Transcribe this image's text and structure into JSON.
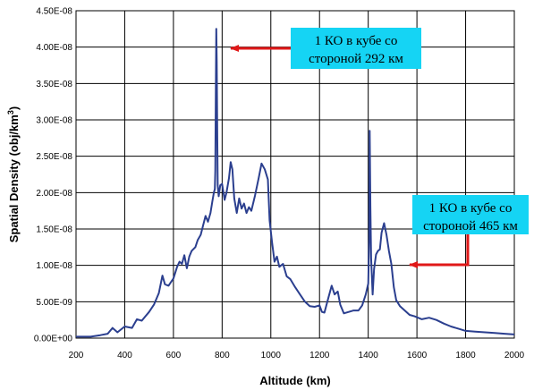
{
  "chart_data": {
    "type": "line",
    "xlabel": "Altitude (km)",
    "ylabel": "Spatial Density (obj/km",
    "ylabel_sup": "3",
    "ylabel_close": ")",
    "xlim": [
      200,
      2000
    ],
    "ylim": [
      0,
      4.5e-08
    ],
    "x_ticks": [
      200,
      400,
      600,
      800,
      1000,
      1200,
      1400,
      1600,
      1800,
      2000
    ],
    "x_tick_labels": [
      "200",
      "400",
      "600",
      "800",
      "1000",
      "1200",
      "1400",
      "1600",
      "1800",
      "2000"
    ],
    "y_ticks": [
      0,
      5e-09,
      1e-08,
      1.5e-08,
      2e-08,
      2.5e-08,
      3e-08,
      3.5e-08,
      4e-08,
      4.5e-08
    ],
    "y_tick_labels": [
      "0.00E+00",
      "5.00E-09",
      "1.00E-08",
      "1.50E-08",
      "2.00E-08",
      "2.50E-08",
      "3.00E-08",
      "3.50E-08",
      "4.00E-08",
      "4.50E-08"
    ],
    "grid": true,
    "line_color": "#2b3f8f",
    "series": [
      {
        "values": [
          [
            200,
            2e-10
          ],
          [
            260,
            2e-10
          ],
          [
            300,
            4e-10
          ],
          [
            330,
            6e-10
          ],
          [
            350,
            1.4e-09
          ],
          [
            370,
            8e-10
          ],
          [
            400,
            1.6e-09
          ],
          [
            430,
            1.4e-09
          ],
          [
            450,
            2.6e-09
          ],
          [
            470,
            2.4e-09
          ],
          [
            500,
            3.6e-09
          ],
          [
            520,
            4.6e-09
          ],
          [
            540,
            6.2e-09
          ],
          [
            555,
            8.6e-09
          ],
          [
            565,
            7.4e-09
          ],
          [
            580,
            7.2e-09
          ],
          [
            600,
            8.2e-09
          ],
          [
            615,
            9.8e-09
          ],
          [
            625,
            1.05e-08
          ],
          [
            635,
            1.02e-08
          ],
          [
            645,
            1.14e-08
          ],
          [
            655,
            9.6e-09
          ],
          [
            665,
            1.12e-08
          ],
          [
            675,
            1.2e-08
          ],
          [
            690,
            1.25e-08
          ],
          [
            700,
            1.35e-08
          ],
          [
            712,
            1.42e-08
          ],
          [
            722,
            1.55e-08
          ],
          [
            732,
            1.68e-08
          ],
          [
            742,
            1.6e-08
          ],
          [
            752,
            1.72e-08
          ],
          [
            760,
            1.88e-08
          ],
          [
            766,
            2e-08
          ],
          [
            770,
            2.05e-08
          ],
          [
            772,
            2.3e-08
          ],
          [
            774,
            3.4e-08
          ],
          [
            776,
            4.25e-08
          ],
          [
            778,
            3.8e-08
          ],
          [
            780,
            2.8e-08
          ],
          [
            782,
            2.1e-08
          ],
          [
            786,
            1.95e-08
          ],
          [
            792,
            2.1e-08
          ],
          [
            800,
            2.12e-08
          ],
          [
            810,
            1.9e-08
          ],
          [
            818,
            2e-08
          ],
          [
            828,
            2.2e-08
          ],
          [
            835,
            2.42e-08
          ],
          [
            842,
            2.32e-08
          ],
          [
            850,
            1.92e-08
          ],
          [
            860,
            1.72e-08
          ],
          [
            870,
            1.92e-08
          ],
          [
            880,
            1.78e-08
          ],
          [
            890,
            1.85e-08
          ],
          [
            900,
            1.72e-08
          ],
          [
            910,
            1.8e-08
          ],
          [
            920,
            1.75e-08
          ],
          [
            935,
            1.96e-08
          ],
          [
            950,
            2.2e-08
          ],
          [
            962,
            2.4e-08
          ],
          [
            975,
            2.32e-08
          ],
          [
            988,
            2.18e-08
          ],
          [
            995,
            1.62e-08
          ],
          [
            1005,
            1.32e-08
          ],
          [
            1015,
            1.05e-08
          ],
          [
            1025,
            1.12e-08
          ],
          [
            1035,
            9.8e-09
          ],
          [
            1050,
            1.02e-08
          ],
          [
            1065,
            8.5e-09
          ],
          [
            1080,
            8.1e-09
          ],
          [
            1100,
            7e-09
          ],
          [
            1120,
            6e-09
          ],
          [
            1140,
            5e-09
          ],
          [
            1160,
            4.4e-09
          ],
          [
            1180,
            4.3e-09
          ],
          [
            1200,
            4.5e-09
          ],
          [
            1210,
            3.6e-09
          ],
          [
            1220,
            3.5e-09
          ],
          [
            1235,
            5.4e-09
          ],
          [
            1250,
            7.2e-09
          ],
          [
            1262,
            6e-09
          ],
          [
            1275,
            6.4e-09
          ],
          [
            1285,
            4.6e-09
          ],
          [
            1300,
            3.4e-09
          ],
          [
            1320,
            3.6e-09
          ],
          [
            1340,
            3.8e-09
          ],
          [
            1360,
            3.8e-09
          ],
          [
            1375,
            4.5e-09
          ],
          [
            1390,
            6e-09
          ],
          [
            1400,
            7.5e-09
          ],
          [
            1404,
            1.4e-08
          ],
          [
            1406,
            2.85e-08
          ],
          [
            1409,
            1.8e-08
          ],
          [
            1412,
            1.1e-08
          ],
          [
            1418,
            6e-09
          ],
          [
            1424,
            9.5e-09
          ],
          [
            1432,
            1.15e-08
          ],
          [
            1440,
            1.2e-08
          ],
          [
            1448,
            1.22e-08
          ],
          [
            1455,
            1.45e-08
          ],
          [
            1465,
            1.58e-08
          ],
          [
            1475,
            1.42e-08
          ],
          [
            1485,
            1.2e-08
          ],
          [
            1495,
            1.02e-08
          ],
          [
            1505,
            7e-09
          ],
          [
            1515,
            5.2e-09
          ],
          [
            1530,
            4.4e-09
          ],
          [
            1550,
            3.8e-09
          ],
          [
            1570,
            3.2e-09
          ],
          [
            1590,
            3e-09
          ],
          [
            1620,
            2.6e-09
          ],
          [
            1650,
            2.8e-09
          ],
          [
            1680,
            2.5e-09
          ],
          [
            1710,
            2e-09
          ],
          [
            1740,
            1.6e-09
          ],
          [
            1770,
            1.3e-09
          ],
          [
            1800,
            1e-09
          ],
          [
            1840,
            9e-10
          ],
          [
            1880,
            8e-10
          ],
          [
            1920,
            7e-10
          ],
          [
            1960,
            6e-10
          ],
          [
            2000,
            5e-10
          ]
        ]
      }
    ],
    "annotations": [
      {
        "lines": [
          "1 КО в кубе со",
          "стороной 292 км"
        ],
        "box_color": "#15d4f4",
        "arrow_color": "#e01818",
        "target": [
          780,
          4e-08
        ],
        "position": "top-right"
      },
      {
        "lines": [
          "1 КО в кубе со",
          "стороной 465 км"
        ],
        "box_color": "#15d4f4",
        "arrow_color": "#e01818",
        "target": [
          1500,
          1e-08
        ],
        "position": "right"
      }
    ]
  }
}
